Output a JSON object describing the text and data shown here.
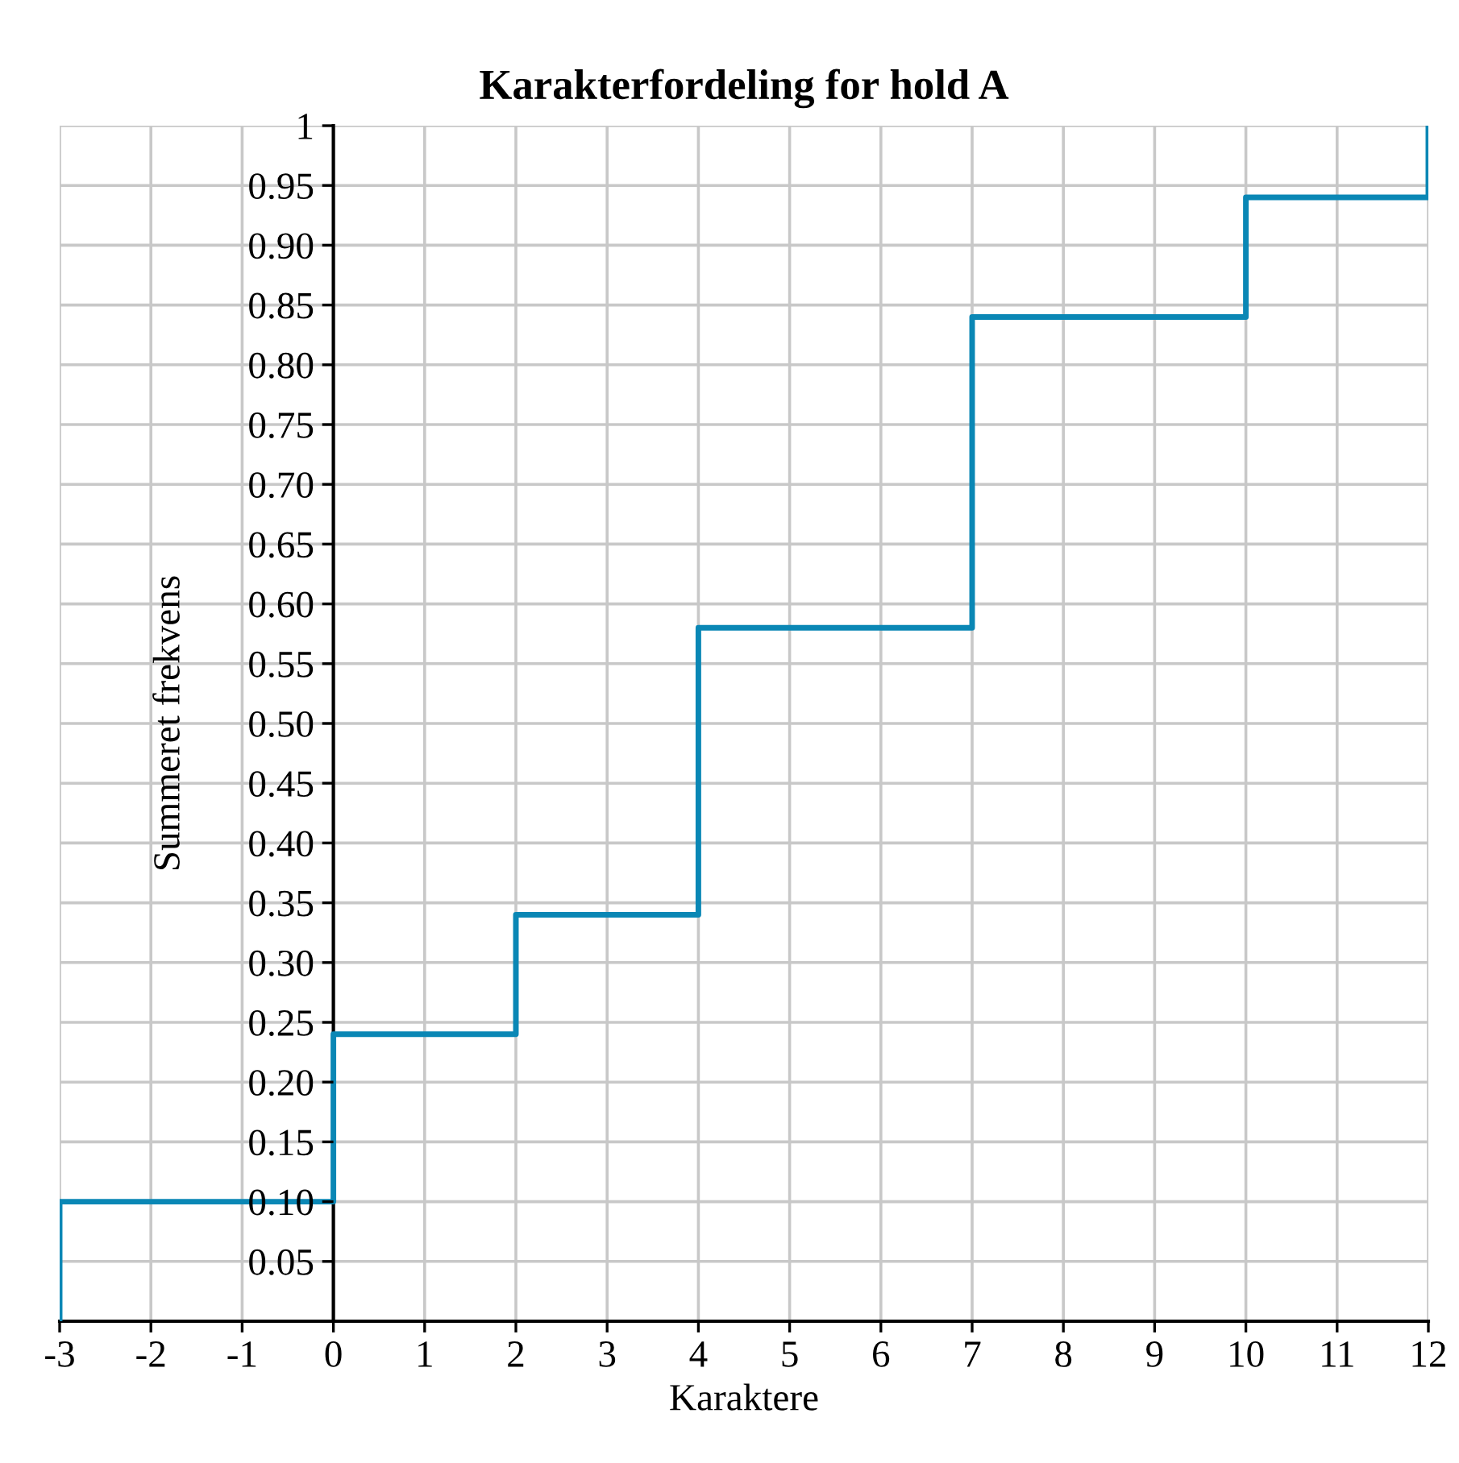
{
  "chart_data": {
    "type": "step",
    "title": "Karakterfordeling for hold A",
    "xlabel": "Karaktere",
    "ylabel": "Summeret frekvens",
    "x": [
      -3,
      -3,
      0,
      2,
      4,
      7,
      10,
      12
    ],
    "series": [
      {
        "color": "#0a87b5",
        "values": [
          0,
          0.1,
          0.24,
          0.34,
          0.58,
          0.84,
          0.94,
          1
        ]
      }
    ],
    "xlim": [
      -3,
      12
    ],
    "xticks": [
      -3,
      -2,
      -1,
      0,
      1,
      2,
      3,
      4,
      5,
      6,
      7,
      8,
      9,
      10,
      11,
      12
    ],
    "ylim": [
      0,
      1
    ],
    "yticks": [
      {
        "value": 0,
        "label": null
      },
      0.05,
      {
        "value": 0.1,
        "label": "0.10"
      },
      0.15,
      {
        "value": 0.2,
        "label": "0.20"
      },
      0.25,
      {
        "value": 0.3,
        "label": "0.30"
      },
      0.35,
      {
        "value": 0.4,
        "label": "0.40"
      },
      0.45,
      {
        "value": 0.5,
        "label": "0.50"
      },
      0.55,
      {
        "value": 0.6,
        "label": "0.60"
      },
      0.65,
      {
        "value": 0.7,
        "label": "0.70"
      },
      0.75,
      {
        "value": 0.8,
        "label": "0.80"
      },
      0.85,
      {
        "value": 0.9,
        "label": "0.90"
      },
      0.95,
      1
    ],
    "grid": true,
    "line_style": "solid"
  }
}
